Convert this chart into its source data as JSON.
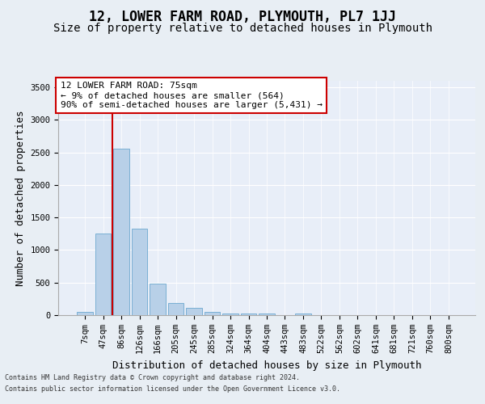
{
  "title": "12, LOWER FARM ROAD, PLYMOUTH, PL7 1JJ",
  "subtitle": "Size of property relative to detached houses in Plymouth",
  "xlabel": "Distribution of detached houses by size in Plymouth",
  "ylabel": "Number of detached properties",
  "footnote1": "Contains HM Land Registry data © Crown copyright and database right 2024.",
  "footnote2": "Contains public sector information licensed under the Open Government Licence v3.0.",
  "bar_labels": [
    "7sqm",
    "47sqm",
    "86sqm",
    "126sqm",
    "166sqm",
    "205sqm",
    "245sqm",
    "285sqm",
    "324sqm",
    "364sqm",
    "404sqm",
    "443sqm",
    "483sqm",
    "522sqm",
    "562sqm",
    "602sqm",
    "641sqm",
    "681sqm",
    "721sqm",
    "760sqm",
    "800sqm"
  ],
  "bar_values": [
    50,
    1250,
    2560,
    1330,
    490,
    185,
    110,
    50,
    30,
    20,
    25,
    0,
    30,
    0,
    0,
    0,
    0,
    0,
    0,
    0,
    0
  ],
  "bar_color": "#b8d0e8",
  "bar_edge_color": "#7aafd4",
  "vline_x": 1.5,
  "property_line_label": "12 LOWER FARM ROAD: 75sqm",
  "annotation_line1": "← 9% of detached houses are smaller (564)",
  "annotation_line2": "90% of semi-detached houses are larger (5,431) →",
  "annotation_box_color": "#ffffff",
  "annotation_box_edge": "#cc0000",
  "vline_color": "#cc0000",
  "ylim": [
    0,
    3600
  ],
  "yticks": [
    0,
    500,
    1000,
    1500,
    2000,
    2500,
    3000,
    3500
  ],
  "bg_color": "#e8eef4",
  "plot_bg_color": "#e8eef8",
  "title_fontsize": 12,
  "subtitle_fontsize": 10,
  "xlabel_fontsize": 9,
  "ylabel_fontsize": 9,
  "tick_fontsize": 7.5,
  "annot_fontsize": 8,
  "footnote_fontsize": 6
}
